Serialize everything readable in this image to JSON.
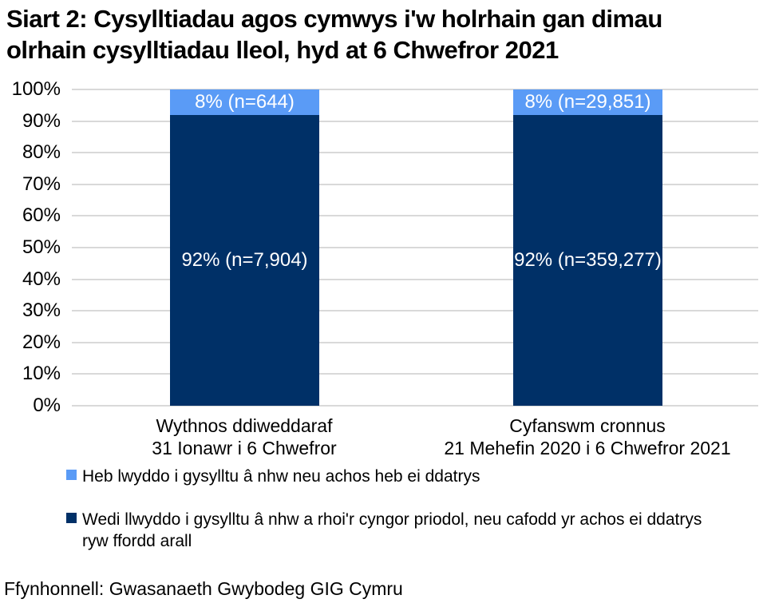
{
  "title": {
    "lines": [
      "Siart 2: Cysylltiadau agos cymwys i'w holrhain gan dimau",
      "olrhain cysylltiadau lleol, hyd at 6 Chwefror 2021"
    ]
  },
  "colors": {
    "light_blue": "#5A9BF6",
    "dark_blue": "#003067",
    "gridline": "#D9D9D9",
    "bar_label_text": "#FFFFFF",
    "text": "#000000"
  },
  "chart_data": {
    "type": "bar",
    "subtype": "stacked-percentage-column",
    "title": "Siart 2: Cysylltiadau agos cymwys i'w holrhain gan dimau olrhain cysylltiadau lleol, hyd at 6 Chwefror 2021",
    "xlabel": "",
    "ylabel": "",
    "ylim": [
      0,
      100
    ],
    "grid": true,
    "legend_position": "bottom",
    "y_axis": {
      "ticks": [
        {
          "value": 0,
          "label": "0%"
        },
        {
          "value": 10,
          "label": "10%"
        },
        {
          "value": 20,
          "label": "20%"
        },
        {
          "value": 30,
          "label": "30%"
        },
        {
          "value": 40,
          "label": "40%"
        },
        {
          "value": 50,
          "label": "50%"
        },
        {
          "value": 60,
          "label": "60%"
        },
        {
          "value": 70,
          "label": "70%"
        },
        {
          "value": 80,
          "label": "80%"
        },
        {
          "value": 90,
          "label": "90%"
        },
        {
          "value": 100,
          "label": "100%"
        }
      ]
    },
    "categories": [
      "Wythnos ddiweddaraf 31 Ionawr i 6 Chwefror",
      "Cyfanswm cronnus 21 Mehefin 2020 i 6 Chwefror 2021"
    ],
    "series": [
      {
        "name": "Heb lwyddo i gysylltu â nhw neu achos heb ei ddatrys",
        "values": [
          8,
          8
        ],
        "counts": [
          644,
          29851
        ],
        "color": "#5A9BF6"
      },
      {
        "name": "Wedi llwyddo i gysylltu â nhw a rhoi'r cyngor priodol, neu cafodd yr achos ei ddatrys ryw ffordd arall",
        "values": [
          92,
          92
        ],
        "counts": [
          7904,
          359277
        ],
        "color": "#003067"
      }
    ],
    "bars": [
      {
        "category_line1": "Wythnos ddiweddaraf",
        "category_line2": "31 Ionawr i 6 Chwefror",
        "segments": [
          {
            "name": "unresolved",
            "pct": 8,
            "n": "644",
            "label": "8% (n=644)",
            "color_key": "light_blue"
          },
          {
            "name": "resolved",
            "pct": 92,
            "n": "7,904",
            "label": "92% (n=7,904)",
            "color_key": "dark_blue"
          }
        ]
      },
      {
        "category_line1": "Cyfanswm cronnus",
        "category_line2": "21 Mehefin 2020 i 6 Chwefror 2021",
        "segments": [
          {
            "name": "unresolved",
            "pct": 8,
            "n": "29,851",
            "label": "8% (n=29,851)",
            "color_key": "light_blue"
          },
          {
            "name": "resolved",
            "pct": 92,
            "n": "359,277",
            "label": "92% (n=359,277)",
            "color_key": "dark_blue"
          }
        ]
      }
    ]
  },
  "legend": {
    "items": [
      {
        "color_key": "light_blue",
        "label": "Heb lwyddo i gysylltu â nhw neu achos heb ei ddatrys"
      },
      {
        "color_key": "dark_blue",
        "label": "Wedi llwyddo i gysylltu â nhw a rhoi'r cyngor priodol, neu cafodd yr achos ei ddatrys ryw ffordd arall"
      }
    ]
  },
  "source": "Ffynhonnell: Gwasanaeth Gwybodeg GIG Cymru"
}
